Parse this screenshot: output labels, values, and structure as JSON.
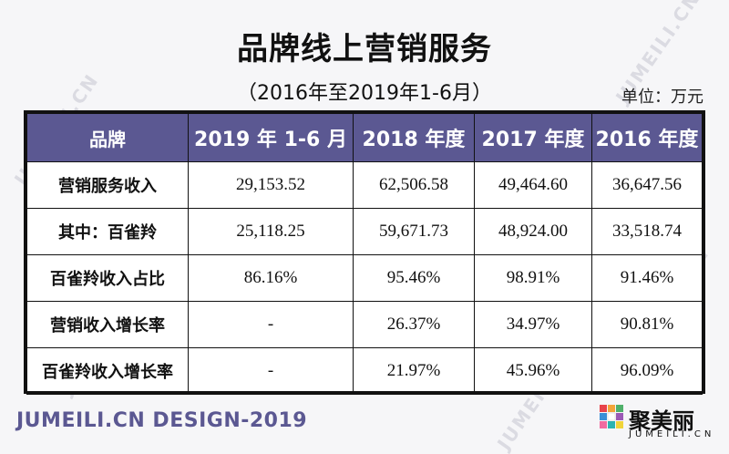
{
  "title": "品牌线上营销服务",
  "subtitle": "（2016年至2019年1-6月）",
  "unit": "单位：万元",
  "table": {
    "headers": [
      "品牌",
      "2019 年 1-6 月",
      "2018 年度",
      "2017 年度",
      "2016 年度"
    ],
    "rows": [
      [
        "营销服务收入",
        "29,153.52",
        "62,506.58",
        "49,464.60",
        "36,647.56"
      ],
      [
        "其中：百雀羚",
        "25,118.25",
        "59,671.73",
        "48,924.00",
        "33,518.74"
      ],
      [
        "百雀羚收入占比",
        "86.16%",
        "95.46%",
        "98.91%",
        "91.46%"
      ],
      [
        "营销收入增长率",
        "-",
        "26.37%",
        "34.97%",
        "90.81%"
      ],
      [
        "百雀羚收入增长率",
        "-",
        "21.97%",
        "45.96%",
        "96.09%"
      ]
    ]
  },
  "footer": "JUMEILI.CN DESIGN-2019",
  "logo": {
    "name": "聚美丽",
    "sub": "JUMEILI.CN"
  },
  "watermark": "JUMEILI.CN",
  "colors": {
    "header_bg": "#5b5892",
    "accent": "#5b5892"
  }
}
